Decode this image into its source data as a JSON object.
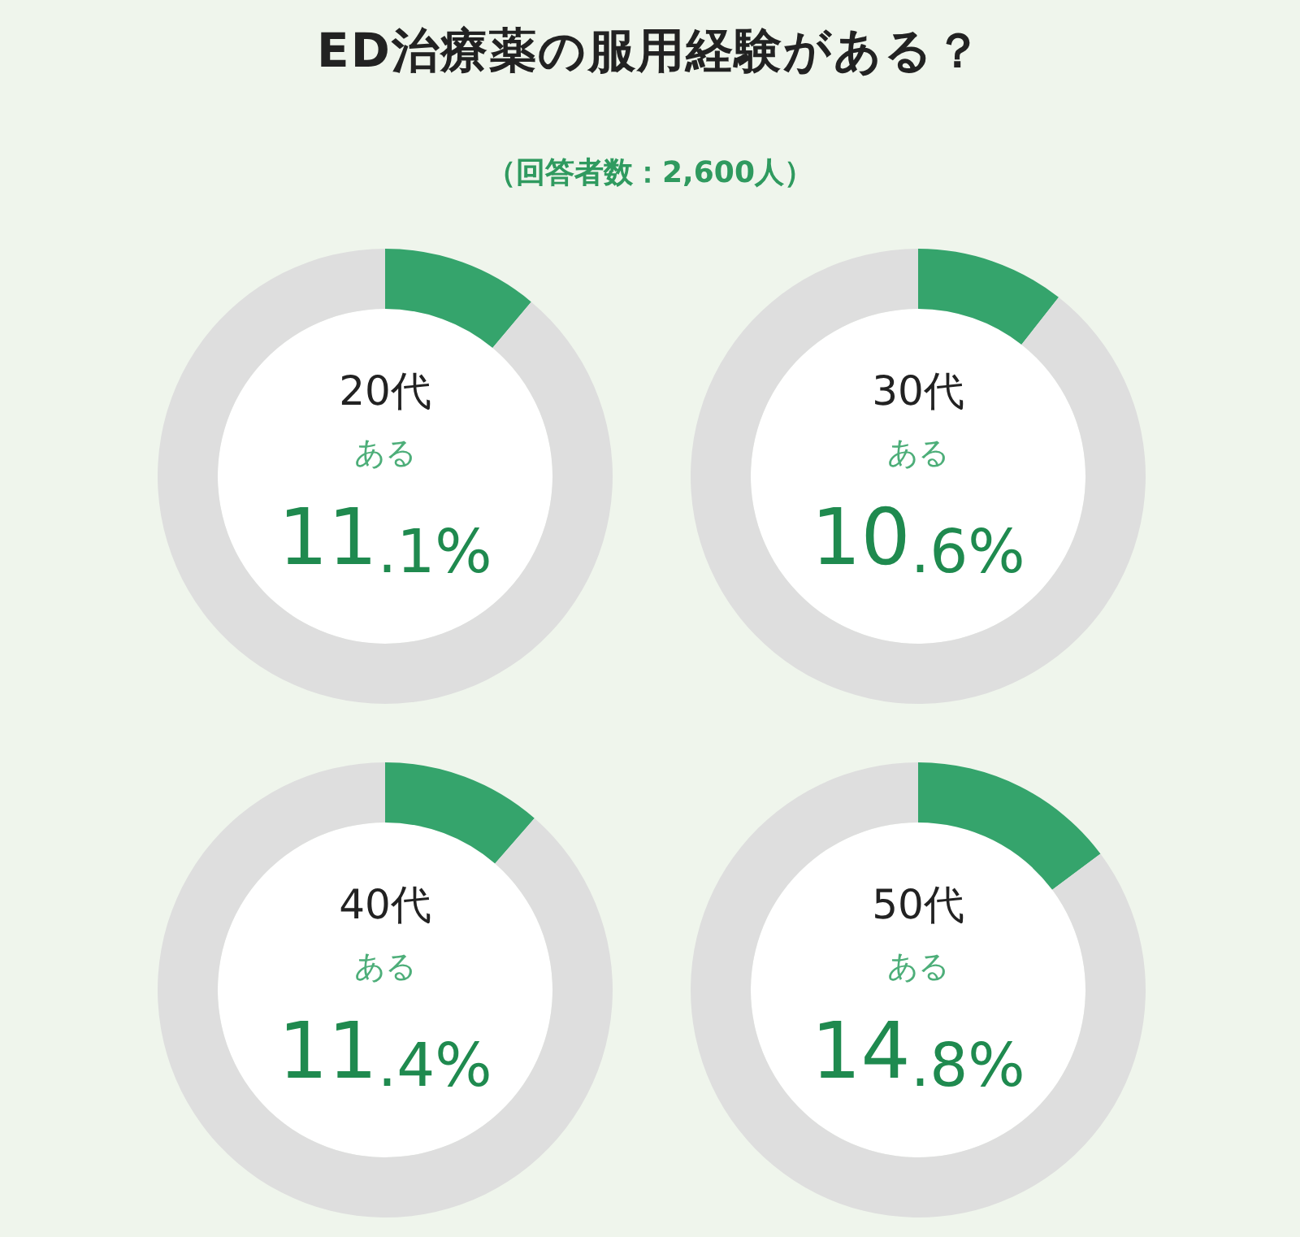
{
  "chart_data": [
    {
      "type": "other",
      "title": "ED治療薬の服用経験がある？",
      "subtitle": "（回答者数：2,600人）"
    },
    {
      "type": "donut",
      "title": "20代",
      "categories": [
        "ある",
        null
      ],
      "values": [
        11.1,
        88.9
      ],
      "colors": [
        "#35a46c",
        "#dedede"
      ],
      "value_labels": [
        "11.1%",
        null
      ]
    },
    {
      "type": "donut",
      "title": "30代",
      "categories": [
        "ある",
        null
      ],
      "values": [
        10.6,
        89.4
      ],
      "colors": [
        "#35a46c",
        "#dedede"
      ],
      "value_labels": [
        "10.6%",
        null
      ]
    },
    {
      "type": "donut",
      "title": "40代",
      "categories": [
        "ある",
        null
      ],
      "values": [
        11.4,
        88.6
      ],
      "colors": [
        "#35a46c",
        "#dedede"
      ],
      "value_labels": [
        "11.4%",
        null
      ]
    },
    {
      "type": "donut",
      "title": "50代",
      "categories": [
        "ある",
        null
      ],
      "values": [
        14.8,
        85.2
      ],
      "colors": [
        "#35a46c",
        "#dedede"
      ],
      "value_labels": [
        "14.8%",
        null
      ]
    }
  ]
}
